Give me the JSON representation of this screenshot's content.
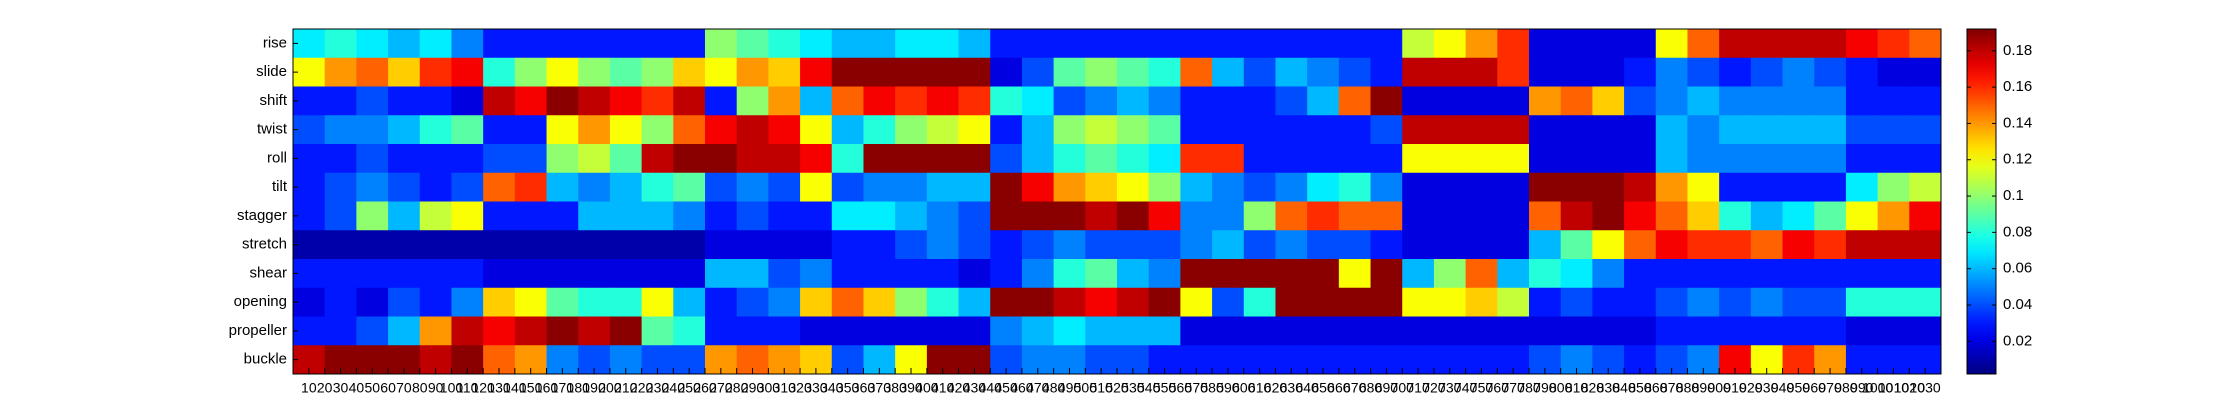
{
  "chart_data": {
    "type": "heatmap",
    "colormap": "jet",
    "rows": [
      "rise",
      "slide",
      "shift",
      "twist",
      "roll",
      "tilt",
      "stagger",
      "stretch",
      "shear",
      "opening",
      "propeller",
      "buckle"
    ],
    "x": [
      10,
      30,
      50,
      70,
      90,
      110,
      130,
      150,
      170,
      190,
      210,
      230,
      250,
      270,
      290,
      310,
      330,
      350,
      370,
      390,
      410,
      430,
      450,
      470,
      490,
      510,
      530,
      550,
      570,
      590,
      610,
      630,
      650,
      670,
      690,
      710,
      730,
      750,
      770,
      790,
      810,
      830,
      850,
      870,
      890,
      910,
      930,
      950,
      970,
      990,
      1010,
      1030
    ],
    "xlim": [
      0,
      1040
    ],
    "xticks": [
      10,
      20,
      30,
      40,
      50,
      60,
      70,
      80,
      90,
      100,
      110,
      120,
      130,
      140,
      150,
      160,
      170,
      180,
      190,
      200,
      210,
      220,
      230,
      240,
      250,
      260,
      270,
      280,
      290,
      300,
      310,
      320,
      330,
      340,
      350,
      360,
      370,
      380,
      390,
      400,
      410,
      420,
      430,
      440,
      450,
      460,
      470,
      480,
      490,
      500,
      510,
      520,
      530,
      540,
      550,
      560,
      570,
      580,
      590,
      600,
      610,
      620,
      630,
      640,
      650,
      660,
      670,
      680,
      690,
      700,
      710,
      720,
      730,
      740,
      750,
      760,
      770,
      780,
      790,
      800,
      810,
      820,
      830,
      840,
      850,
      860,
      870,
      880,
      890,
      900,
      910,
      920,
      930,
      940,
      950,
      960,
      970,
      980,
      990,
      1000,
      1010,
      1020,
      1030
    ],
    "clim": [
      0.002,
      0.192
    ],
    "cticks": [
      0.02,
      0.04,
      0.06,
      0.08,
      0.1,
      0.12,
      0.14,
      0.16,
      0.18
    ],
    "values": [
      [
        0.07,
        0.08,
        0.07,
        0.06,
        0.07,
        0.05,
        0.03,
        0.03,
        0.03,
        0.03,
        0.03,
        0.03,
        0.03,
        0.1,
        0.09,
        0.08,
        0.07,
        0.06,
        0.06,
        0.07,
        0.07,
        0.06,
        0.03,
        0.03,
        0.03,
        0.03,
        0.03,
        0.03,
        0.03,
        0.03,
        0.03,
        0.03,
        0.03,
        0.03,
        0.03,
        0.11,
        0.12,
        0.14,
        0.16,
        0.02,
        0.02,
        0.02,
        0.02,
        0.12,
        0.15,
        0.18,
        0.18,
        0.18,
        0.18,
        0.17,
        0.16,
        0.15
      ],
      [
        0.12,
        0.14,
        0.15,
        0.13,
        0.16,
        0.17,
        0.08,
        0.1,
        0.12,
        0.1,
        0.09,
        0.1,
        0.13,
        0.12,
        0.14,
        0.13,
        0.17,
        0.19,
        0.19,
        0.19,
        0.19,
        0.19,
        0.02,
        0.04,
        0.09,
        0.1,
        0.09,
        0.08,
        0.15,
        0.06,
        0.04,
        0.06,
        0.05,
        0.04,
        0.03,
        0.18,
        0.18,
        0.18,
        0.16,
        0.02,
        0.02,
        0.02,
        0.03,
        0.05,
        0.04,
        0.03,
        0.04,
        0.05,
        0.04,
        0.03,
        0.02,
        0.02
      ],
      [
        0.03,
        0.03,
        0.04,
        0.03,
        0.03,
        0.02,
        0.18,
        0.17,
        0.19,
        0.18,
        0.17,
        0.16,
        0.18,
        0.03,
        0.1,
        0.14,
        0.06,
        0.15,
        0.17,
        0.16,
        0.17,
        0.16,
        0.08,
        0.07,
        0.04,
        0.05,
        0.06,
        0.05,
        0.03,
        0.03,
        0.03,
        0.04,
        0.06,
        0.15,
        0.19,
        0.02,
        0.02,
        0.02,
        0.02,
        0.14,
        0.15,
        0.13,
        0.04,
        0.05,
        0.06,
        0.05,
        0.05,
        0.05,
        0.05,
        0.03,
        0.03,
        0.03
      ],
      [
        0.04,
        0.05,
        0.05,
        0.06,
        0.08,
        0.09,
        0.03,
        0.03,
        0.12,
        0.14,
        0.12,
        0.1,
        0.15,
        0.17,
        0.18,
        0.17,
        0.12,
        0.06,
        0.08,
        0.1,
        0.11,
        0.12,
        0.03,
        0.06,
        0.1,
        0.11,
        0.1,
        0.09,
        0.03,
        0.03,
        0.03,
        0.03,
        0.03,
        0.03,
        0.04,
        0.18,
        0.18,
        0.18,
        0.18,
        0.02,
        0.02,
        0.02,
        0.02,
        0.06,
        0.05,
        0.06,
        0.06,
        0.06,
        0.06,
        0.04,
        0.04,
        0.04
      ],
      [
        0.03,
        0.03,
        0.04,
        0.03,
        0.03,
        0.03,
        0.04,
        0.04,
        0.1,
        0.11,
        0.09,
        0.18,
        0.19,
        0.19,
        0.18,
        0.18,
        0.17,
        0.08,
        0.19,
        0.19,
        0.19,
        0.19,
        0.04,
        0.06,
        0.08,
        0.09,
        0.08,
        0.07,
        0.16,
        0.16,
        0.03,
        0.03,
        0.03,
        0.03,
        0.03,
        0.12,
        0.12,
        0.12,
        0.12,
        0.02,
        0.02,
        0.02,
        0.02,
        0.06,
        0.05,
        0.05,
        0.05,
        0.05,
        0.05,
        0.03,
        0.03,
        0.03
      ],
      [
        0.03,
        0.04,
        0.05,
        0.04,
        0.03,
        0.04,
        0.15,
        0.16,
        0.06,
        0.05,
        0.06,
        0.08,
        0.09,
        0.04,
        0.05,
        0.04,
        0.12,
        0.04,
        0.05,
        0.05,
        0.06,
        0.06,
        0.19,
        0.17,
        0.14,
        0.13,
        0.12,
        0.1,
        0.06,
        0.05,
        0.04,
        0.05,
        0.07,
        0.08,
        0.05,
        0.02,
        0.02,
        0.02,
        0.02,
        0.19,
        0.19,
        0.19,
        0.18,
        0.14,
        0.12,
        0.03,
        0.03,
        0.03,
        0.03,
        0.07,
        0.1,
        0.11
      ],
      [
        0.03,
        0.04,
        0.1,
        0.06,
        0.11,
        0.12,
        0.03,
        0.03,
        0.03,
        0.06,
        0.06,
        0.06,
        0.05,
        0.03,
        0.04,
        0.03,
        0.03,
        0.07,
        0.07,
        0.06,
        0.05,
        0.04,
        0.19,
        0.19,
        0.19,
        0.18,
        0.19,
        0.17,
        0.05,
        0.05,
        0.1,
        0.15,
        0.16,
        0.15,
        0.15,
        0.02,
        0.02,
        0.02,
        0.02,
        0.15,
        0.18,
        0.19,
        0.17,
        0.15,
        0.13,
        0.08,
        0.06,
        0.07,
        0.09,
        0.12,
        0.14,
        0.17
      ],
      [
        0.01,
        0.01,
        0.01,
        0.01,
        0.01,
        0.01,
        0.01,
        0.01,
        0.01,
        0.01,
        0.01,
        0.01,
        0.01,
        0.02,
        0.02,
        0.02,
        0.02,
        0.03,
        0.03,
        0.04,
        0.05,
        0.04,
        0.03,
        0.04,
        0.05,
        0.04,
        0.04,
        0.04,
        0.05,
        0.06,
        0.04,
        0.05,
        0.04,
        0.04,
        0.03,
        0.02,
        0.02,
        0.02,
        0.02,
        0.06,
        0.09,
        0.12,
        0.15,
        0.17,
        0.16,
        0.16,
        0.15,
        0.17,
        0.16,
        0.18,
        0.18,
        0.18
      ],
      [
        0.03,
        0.03,
        0.03,
        0.03,
        0.03,
        0.03,
        0.02,
        0.02,
        0.02,
        0.02,
        0.02,
        0.02,
        0.02,
        0.06,
        0.06,
        0.04,
        0.05,
        0.03,
        0.03,
        0.03,
        0.03,
        0.02,
        0.03,
        0.05,
        0.08,
        0.09,
        0.06,
        0.05,
        0.19,
        0.19,
        0.19,
        0.19,
        0.19,
        0.12,
        0.19,
        0.06,
        0.1,
        0.15,
        0.06,
        0.08,
        0.07,
        0.05,
        0.03,
        0.03,
        0.03,
        0.03,
        0.03,
        0.03,
        0.03,
        0.03,
        0.03,
        0.03
      ],
      [
        0.02,
        0.03,
        0.02,
        0.04,
        0.03,
        0.05,
        0.13,
        0.12,
        0.09,
        0.08,
        0.08,
        0.12,
        0.06,
        0.03,
        0.04,
        0.05,
        0.13,
        0.15,
        0.13,
        0.1,
        0.08,
        0.06,
        0.19,
        0.19,
        0.18,
        0.17,
        0.18,
        0.19,
        0.12,
        0.04,
        0.08,
        0.19,
        0.19,
        0.19,
        0.19,
        0.12,
        0.12,
        0.13,
        0.11,
        0.03,
        0.04,
        0.03,
        0.03,
        0.04,
        0.05,
        0.04,
        0.05,
        0.04,
        0.04,
        0.08,
        0.08,
        0.08
      ],
      [
        0.03,
        0.03,
        0.04,
        0.06,
        0.14,
        0.18,
        0.17,
        0.18,
        0.19,
        0.18,
        0.19,
        0.09,
        0.08,
        0.03,
        0.03,
        0.03,
        0.02,
        0.02,
        0.02,
        0.02,
        0.02,
        0.02,
        0.05,
        0.06,
        0.07,
        0.06,
        0.06,
        0.06,
        0.02,
        0.02,
        0.02,
        0.02,
        0.02,
        0.02,
        0.02,
        0.02,
        0.02,
        0.02,
        0.02,
        0.02,
        0.02,
        0.02,
        0.02,
        0.03,
        0.03,
        0.03,
        0.03,
        0.03,
        0.03,
        0.02,
        0.02,
        0.02
      ],
      [
        0.18,
        0.19,
        0.19,
        0.19,
        0.18,
        0.19,
        0.15,
        0.14,
        0.05,
        0.04,
        0.05,
        0.04,
        0.04,
        0.14,
        0.15,
        0.14,
        0.13,
        0.04,
        0.06,
        0.12,
        0.19,
        0.19,
        0.04,
        0.05,
        0.05,
        0.04,
        0.04,
        0.03,
        0.03,
        0.03,
        0.03,
        0.03,
        0.03,
        0.03,
        0.03,
        0.03,
        0.03,
        0.03,
        0.03,
        0.04,
        0.05,
        0.04,
        0.03,
        0.04,
        0.05,
        0.17,
        0.12,
        0.16,
        0.14,
        0.03,
        0.03,
        0.03
      ]
    ]
  }
}
